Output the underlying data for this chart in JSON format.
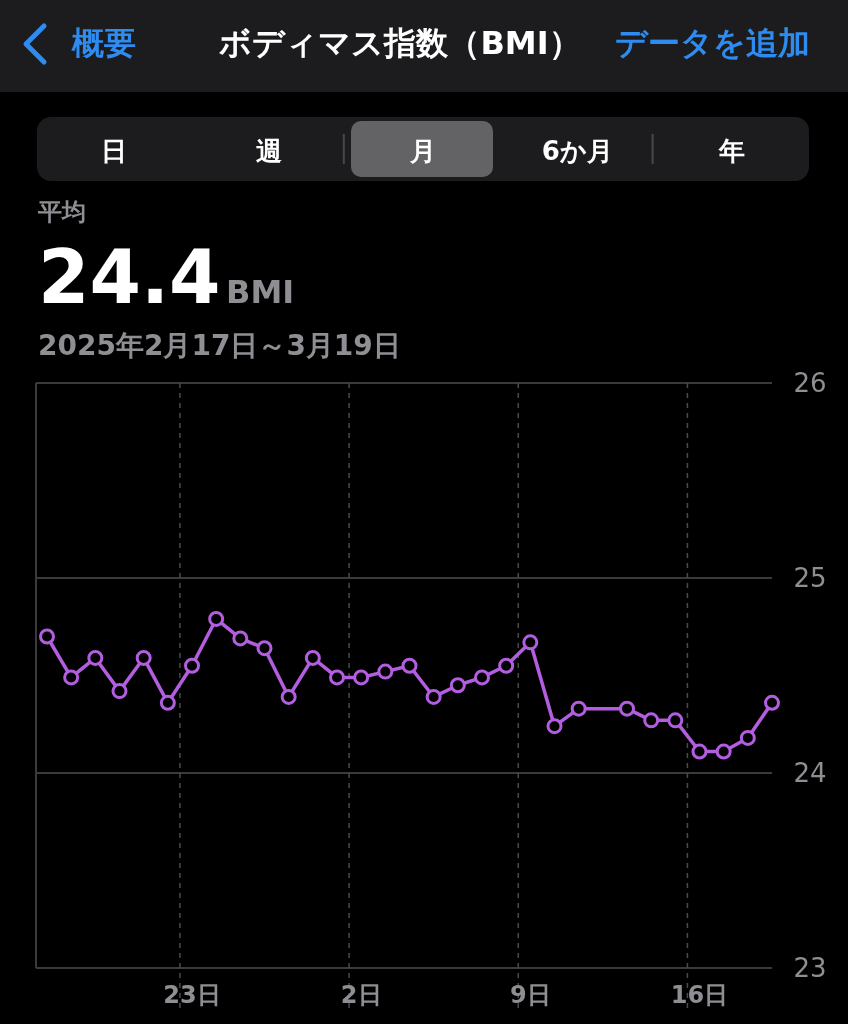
{
  "chart_data": {
    "type": "line",
    "title": "ボディマス指数（BMI）",
    "annotations": [
      "概要",
      "データを追加",
      "日",
      "週",
      "月",
      "6か月",
      "年",
      "平均",
      "24.4",
      "BMI",
      "2025年2月17日～3月19日"
    ],
    "categories": [
      null,
      null,
      null,
      null,
      null,
      null,
      "23日",
      null,
      null,
      null,
      null,
      null,
      null,
      "2日",
      null,
      null,
      null,
      null,
      null,
      null,
      "9日",
      null,
      null,
      null,
      null,
      null,
      null,
      "16日",
      null,
      null,
      null
    ],
    "series": [
      {
        "color": "#b35ee0",
        "values": [
          24.7,
          24.49,
          24.59,
          24.42,
          24.59,
          24.36,
          24.55,
          24.79,
          24.69,
          24.64,
          24.39,
          24.59,
          24.49,
          24.49,
          24.52,
          24.55,
          24.39,
          24.45,
          24.49,
          24.55,
          24.67,
          24.24,
          24.33,
          null,
          24.33,
          24.27,
          24.27,
          24.11,
          24.11,
          24.18,
          24.36
        ]
      }
    ],
    "ylim": [
      23,
      26
    ],
    "yticks": [
      23,
      24,
      25,
      26
    ],
    "grid": true,
    "marker": "circle",
    "line_style": "solid"
  }
}
